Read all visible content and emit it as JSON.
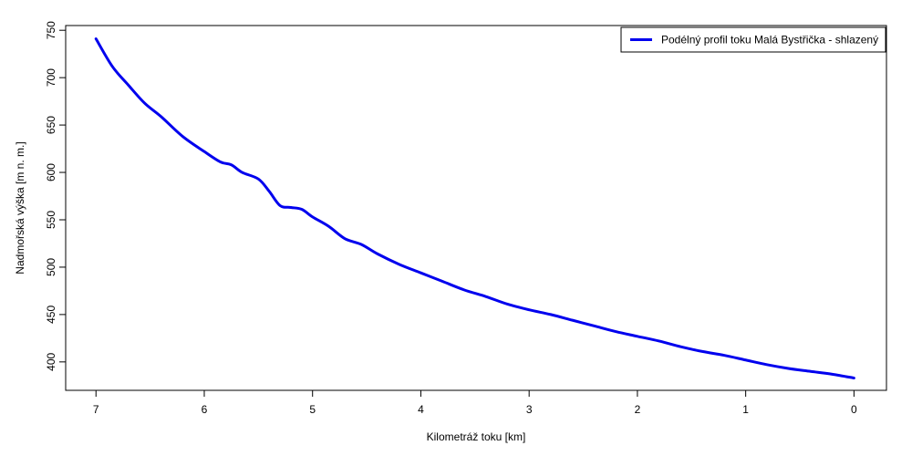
{
  "chart_data": {
    "type": "line",
    "title": "",
    "xlabel": "Kilometráž toku [km]",
    "ylabel": "Nadmořská výška [m n. m.]",
    "xlim": [
      7.28,
      -0.3
    ],
    "ylim": [
      370,
      755
    ],
    "x_reversed": true,
    "xticks": [
      7,
      6,
      5,
      4,
      3,
      2,
      1,
      0
    ],
    "yticks": [
      400,
      450,
      500,
      550,
      600,
      650,
      700,
      750
    ],
    "grid": false,
    "legend_position": "top-right",
    "series": [
      {
        "name": "Podélný profil toku Malá Bystřička - shlazený",
        "color": "#0000ee",
        "x": [
          7.0,
          6.85,
          6.7,
          6.55,
          6.4,
          6.2,
          6.0,
          5.85,
          5.75,
          5.65,
          5.5,
          5.4,
          5.3,
          5.2,
          5.1,
          5.0,
          4.85,
          4.7,
          4.55,
          4.4,
          4.2,
          4.0,
          3.8,
          3.6,
          3.4,
          3.2,
          3.0,
          2.8,
          2.6,
          2.4,
          2.2,
          2.0,
          1.8,
          1.6,
          1.4,
          1.2,
          1.0,
          0.8,
          0.6,
          0.4,
          0.2,
          0.0
        ],
        "y": [
          741,
          712,
          692,
          673,
          659,
          638,
          622,
          611,
          608,
          600,
          593,
          580,
          565,
          563,
          561,
          553,
          543,
          530,
          524,
          514,
          503,
          494,
          485,
          476,
          469,
          461,
          455,
          450,
          444,
          438,
          432,
          427,
          422,
          416,
          411,
          407,
          402,
          397,
          393,
          390,
          387,
          383
        ]
      }
    ]
  }
}
